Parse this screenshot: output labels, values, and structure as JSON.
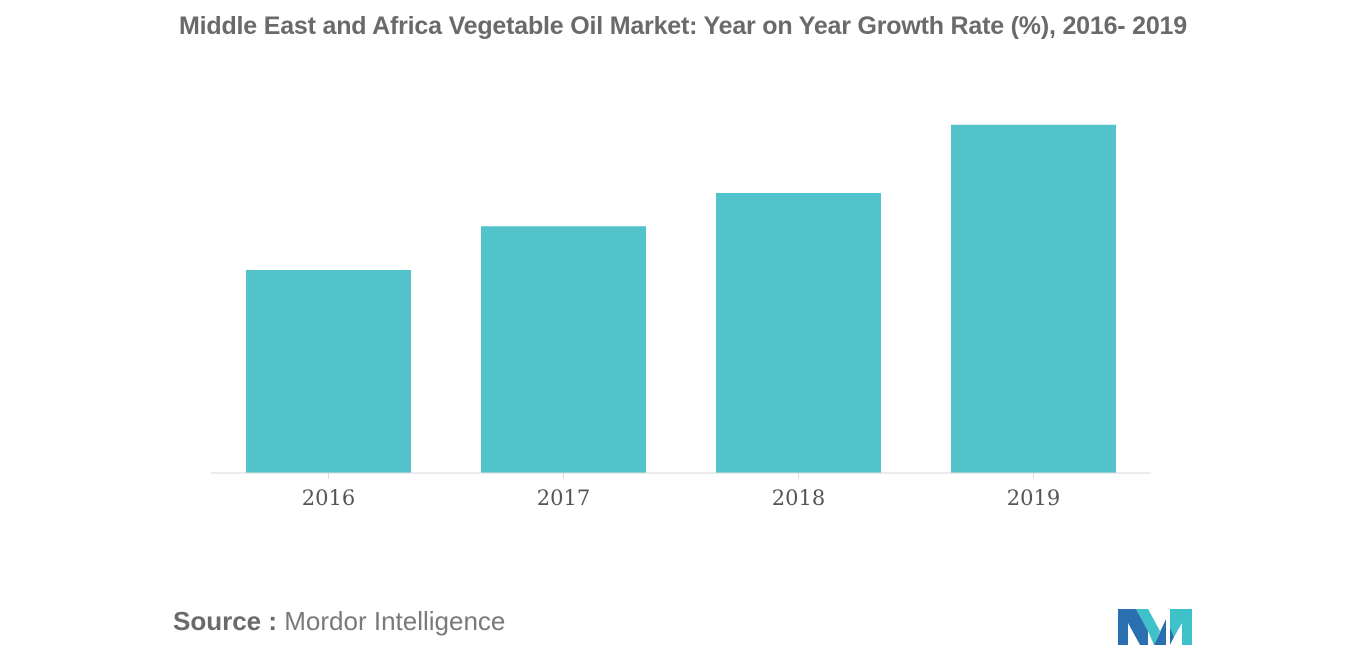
{
  "chart_data": {
    "type": "bar",
    "title": "Middle East and Africa Vegetable Oil Market: Year on Year Growth Rate (%), 2016- 2019",
    "categories": [
      "2016",
      "2017",
      "2018",
      "2019"
    ],
    "values": [
      58,
      70.5,
      80,
      99.5
    ],
    "ylim": [
      0,
      100
    ],
    "xlabel": "",
    "ylabel": "",
    "grid": false,
    "legend": "none",
    "bar_color": "#52c3ca",
    "axis_color": "#d9d9d9",
    "tick_label_color": "#555555"
  },
  "source": {
    "label": "Source :",
    "text": "Mordor Intelligence"
  },
  "logo": {
    "icon": "mordor-intelligence-logo",
    "colors": [
      "#2a6fb0",
      "#3fc1c9"
    ]
  }
}
